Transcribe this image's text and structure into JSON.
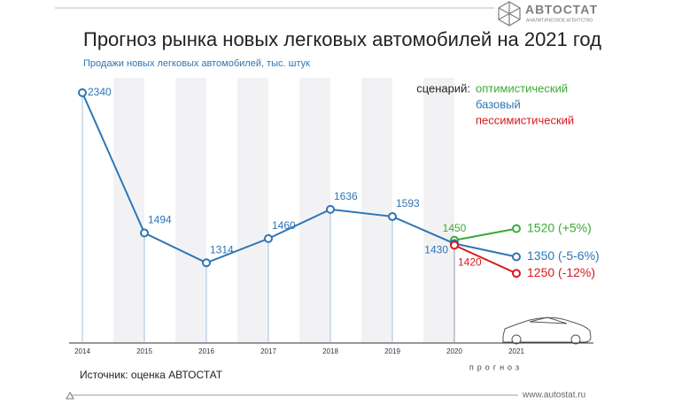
{
  "chart_data": {
    "type": "line",
    "title": "Прогноз рынка новых легковых автомобилей на 2021 год",
    "subtitle": "Продажи новых легковых автомобилей, тыс. штук",
    "legend_title": "сценарий:",
    "categories": [
      "2014",
      "2015",
      "2016",
      "2017",
      "2018",
      "2019",
      "2020",
      "2021"
    ],
    "forecast_label": "прогноз",
    "ylim": [
      830,
      2430
    ],
    "series": [
      {
        "name": "оптимистический",
        "color": "#3aaa35",
        "values": [
          null,
          null,
          null,
          null,
          null,
          null,
          1450,
          1520
        ],
        "value_labels": [
          null,
          null,
          null,
          null,
          null,
          null,
          "1450",
          "1520 (+5%)"
        ]
      },
      {
        "name": "базовый",
        "color": "#2e75b6",
        "values": [
          2340,
          1494,
          1314,
          1460,
          1636,
          1593,
          1430,
          1350
        ],
        "value_labels": [
          "2340",
          "1494",
          "1314",
          "1460",
          "1636",
          "1593",
          "1430",
          "1350 (-5-6%)"
        ]
      },
      {
        "name": "пессимистический",
        "color": "#d7191c",
        "values": [
          null,
          null,
          null,
          null,
          null,
          null,
          1420,
          1250
        ],
        "value_labels": [
          null,
          null,
          null,
          null,
          null,
          null,
          "1420",
          "1250 (-12%)"
        ]
      }
    ],
    "source": "Источник: оценка АВТОСТАТ",
    "logo": "АВТОСТАТ",
    "logo_subtitle": "АНАЛИТИЧЕСКОЕ АГЕНТСТВО",
    "website": "www.autostat.ru"
  }
}
